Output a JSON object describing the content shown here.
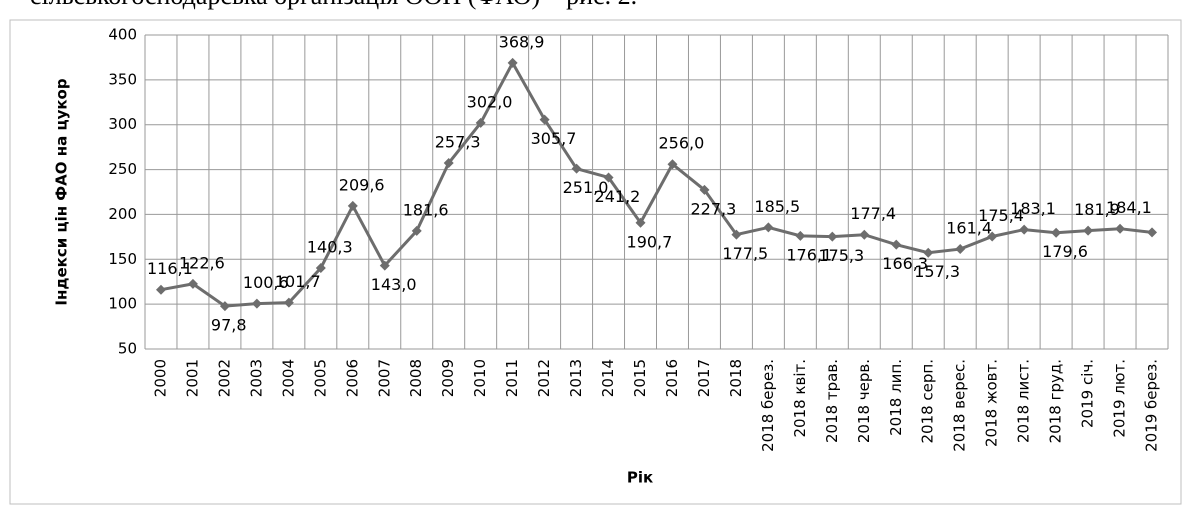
{
  "caption": "сільськогосподарська організація ООН (ФАО) – рис. 2.",
  "chart_data": {
    "type": "line",
    "y_label": "Індекси цін ФАО на цукор",
    "x_label": "Рік",
    "categories": [
      "2000",
      "2001",
      "2002",
      "2003",
      "2004",
      "2005",
      "2006",
      "2007",
      "2008",
      "2009",
      "2010",
      "2011",
      "2012",
      "2013",
      "2014",
      "2015",
      "2016",
      "2017",
      "2018",
      "2018 берез.",
      "2018 квіт.",
      "2018 трав.",
      "2018 черв.",
      "2018 лип.",
      "2018 серп.",
      "2018 верес.",
      "2018 жовт.",
      "2018 лист.",
      "2018 груд.",
      "2019 січ.",
      "2019 лют.",
      "2019 берез."
    ],
    "series": [
      {
        "name": "Індекси цін ФАО на цукор",
        "color": "#6d6d6d",
        "values": [
          116.1,
          122.6,
          97.8,
          100.6,
          101.7,
          140.3,
          209.6,
          143.0,
          181.6,
          257.3,
          302.0,
          368.9,
          305.7,
          251.0,
          241.2,
          190.7,
          256.0,
          227.3,
          177.5,
          185.5,
          176.1,
          175.3,
          177.4,
          166.3,
          157.3,
          161.4,
          175.4,
          183.1,
          179.6,
          181.9,
          184.1,
          180
        ],
        "value_labels": [
          "116,1",
          "122,6",
          "97,8",
          "100,6",
          "101,7",
          "140,3",
          "209,6",
          "143,0",
          "181,6",
          "257,3",
          "302,0",
          "368,9",
          "305,7",
          "251,0",
          "241,2",
          "190,7",
          "256,0",
          "227,3",
          "177,5",
          "185,5",
          "176,1",
          "175,3",
          "177,4",
          "166,3",
          "157,3",
          "161,4",
          "175,4",
          "183,1",
          "179,6",
          "181,9",
          "184,1",
          null
        ]
      }
    ],
    "ylim": [
      50,
      400
    ],
    "yticks": [
      50,
      100,
      150,
      200,
      250,
      300,
      350,
      400
    ],
    "grid": true
  }
}
